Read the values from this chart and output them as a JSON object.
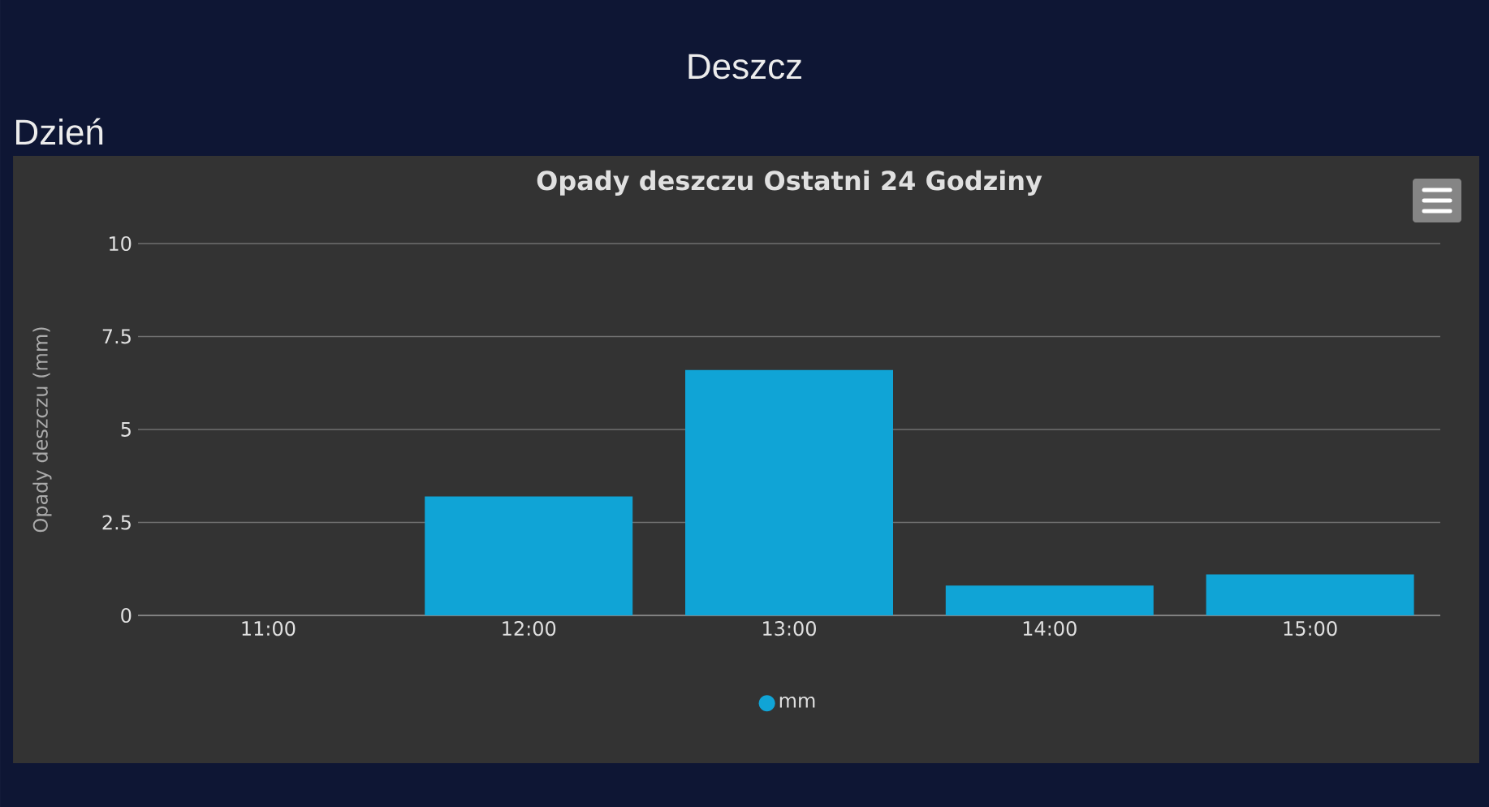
{
  "chart_data": {
    "type": "bar",
    "title": "Opady deszczu Ostatni 24 Godziny",
    "annotations": [
      "Deszcz",
      "Dzień"
    ],
    "ylabel": "Opady deszczu (mm)",
    "categories": [
      "11:00",
      "12:00",
      "13:00",
      "14:00",
      "15:00"
    ],
    "series": [
      {
        "name": "mm",
        "color": "#10a4d6",
        "values": [
          0,
          3.2,
          6.6,
          0.8,
          1.1
        ]
      }
    ],
    "ylim": [
      0,
      10
    ],
    "yticks": [
      0,
      2.5,
      5,
      7.5,
      10
    ],
    "grid": "y",
    "legend": "bottom"
  }
}
